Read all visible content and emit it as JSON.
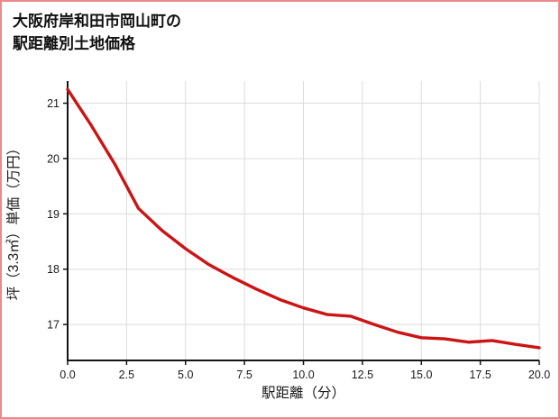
{
  "title": {
    "line1": "大阪府岸和田市岡山町の",
    "line2": "駅距離別土地価格"
  },
  "colors": {
    "line": "#cc1414",
    "grid": "#dcdcdc",
    "axis": "#141414",
    "border": "#ee8989",
    "background": "#ffffff",
    "text": "#111111"
  },
  "chart_data": {
    "type": "line",
    "title": "大阪府岸和田市岡山町の駅距離別土地価格",
    "xlabel": "駅距離（分）",
    "ylabel": "坪（3.3㎡）単価（万円）",
    "x": [
      0,
      1,
      2,
      3,
      4,
      5,
      6,
      7,
      8,
      9,
      10,
      11,
      12,
      13,
      14,
      15,
      16,
      17,
      18,
      19,
      20
    ],
    "y": [
      21.25,
      20.6,
      19.9,
      19.1,
      18.7,
      18.37,
      18.08,
      17.85,
      17.64,
      17.45,
      17.3,
      17.18,
      17.15,
      17.0,
      16.86,
      16.76,
      16.74,
      16.68,
      16.71,
      16.64,
      16.58
    ],
    "xlim": [
      0,
      20
    ],
    "ylim": [
      16.35,
      21.4
    ],
    "xticks": [
      0,
      2.5,
      5,
      7.5,
      10,
      12.5,
      15,
      17.5,
      20
    ],
    "xtick_labels": [
      "0.0",
      "2.5",
      "5.0",
      "7.5",
      "10.0",
      "12.5",
      "15.0",
      "17.5",
      "20.0"
    ],
    "yticks": [
      17,
      18,
      19,
      20,
      21
    ],
    "ytick_labels": [
      "17",
      "18",
      "19",
      "20",
      "21"
    ],
    "grid": true,
    "legend": false
  }
}
